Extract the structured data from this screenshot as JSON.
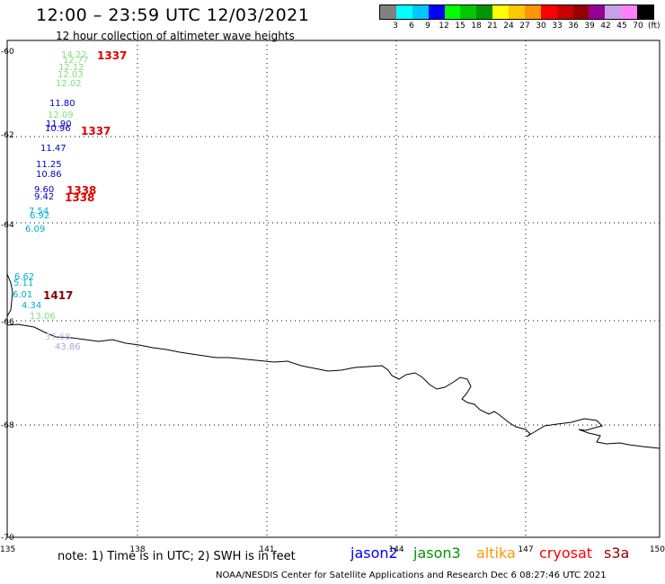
{
  "header": {
    "title": "12:00 – 23:59 UTC 12/03/2021",
    "subtitle": "12 hour collection of altimeter wave heights"
  },
  "scale": {
    "unit": "(ft)",
    "labels": [
      "3",
      "6",
      "9",
      "12",
      "15",
      "18",
      "21",
      "24",
      "27",
      "30",
      "33",
      "36",
      "39",
      "42",
      "45",
      "70"
    ],
    "colors": [
      "#808080",
      "#00ffff",
      "#00c8ff",
      "#0000ff",
      "#00ff00",
      "#00c800",
      "#009600",
      "#ffff00",
      "#ffc800",
      "#ff9600",
      "#ff0000",
      "#c80000",
      "#960000",
      "#960096",
      "#c8a0e6",
      "#ff80ff",
      "#000000"
    ]
  },
  "axes": {
    "lat_labels": [
      "-60",
      "-62",
      "-64",
      "-66",
      "-68",
      "-70"
    ],
    "lon_labels": [
      "135",
      "138",
      "141",
      "144",
      "147",
      "150"
    ]
  },
  "footer": {
    "note": "note:  1) Time is in UTC;  2) SWH is in feet",
    "satellites": [
      {
        "name": "jason2",
        "color": "#0000ff"
      },
      {
        "name": "jason3",
        "color": "#009600"
      },
      {
        "name": "altika",
        "color": "#ff9600"
      },
      {
        "name": "cryosat",
        "color": "#ff0000"
      },
      {
        "name": "s3a",
        "color": "#960000"
      }
    ],
    "credit": "NOAA/NESDIS Center for Satellite Applications and Research     Dec  6 08:27:46 UTC 2021"
  },
  "observations": [
    {
      "text": "14.22",
      "color": "#80e080"
    },
    {
      "text": "12.77",
      "color": "#80e080"
    },
    {
      "text": "12.12",
      "color": "#80e080"
    },
    {
      "text": "12.03",
      "color": "#80e080"
    },
    {
      "text": "12.02",
      "color": "#80e080"
    },
    {
      "text": "11.80",
      "color": "#0000c8"
    },
    {
      "text": "12.09",
      "color": "#80e080"
    },
    {
      "text": "11.90",
      "color": "#0000c8"
    },
    {
      "text": "10.96",
      "color": "#0000c8"
    },
    {
      "text": "11.47",
      "color": "#0000c8"
    },
    {
      "text": "11.25",
      "color": "#0000c8"
    },
    {
      "text": "10.86",
      "color": "#0000c8"
    },
    {
      "text": "9.60",
      "color": "#0000c8"
    },
    {
      "text": "9.42",
      "color": "#0000c8"
    },
    {
      "text": "7.54",
      "color": "#00b0d0"
    },
    {
      "text": "6.92",
      "color": "#00b0d0"
    },
    {
      "text": "6.09",
      "color": "#00b0d0"
    },
    {
      "text": "6.62",
      "color": "#00b0d0"
    },
    {
      "text": "5.11",
      "color": "#00b0d0"
    },
    {
      "text": "6.01",
      "color": "#00b0d0"
    },
    {
      "text": "4.34",
      "color": "#00b0d0"
    },
    {
      "text": "13.06",
      "color": "#80e080"
    },
    {
      "text": "37.68",
      "color": "#d0b0f0"
    },
    {
      "text": "43.86",
      "color": "#b0a0e0"
    },
    {
      "text": "1337",
      "color": "#e00000"
    },
    {
      "text": "1337",
      "color": "#e00000"
    },
    {
      "text": "1338",
      "color": "#e00000"
    },
    {
      "text": "1338",
      "color": "#e00000"
    },
    {
      "text": "1417",
      "color": "#800000"
    }
  ]
}
